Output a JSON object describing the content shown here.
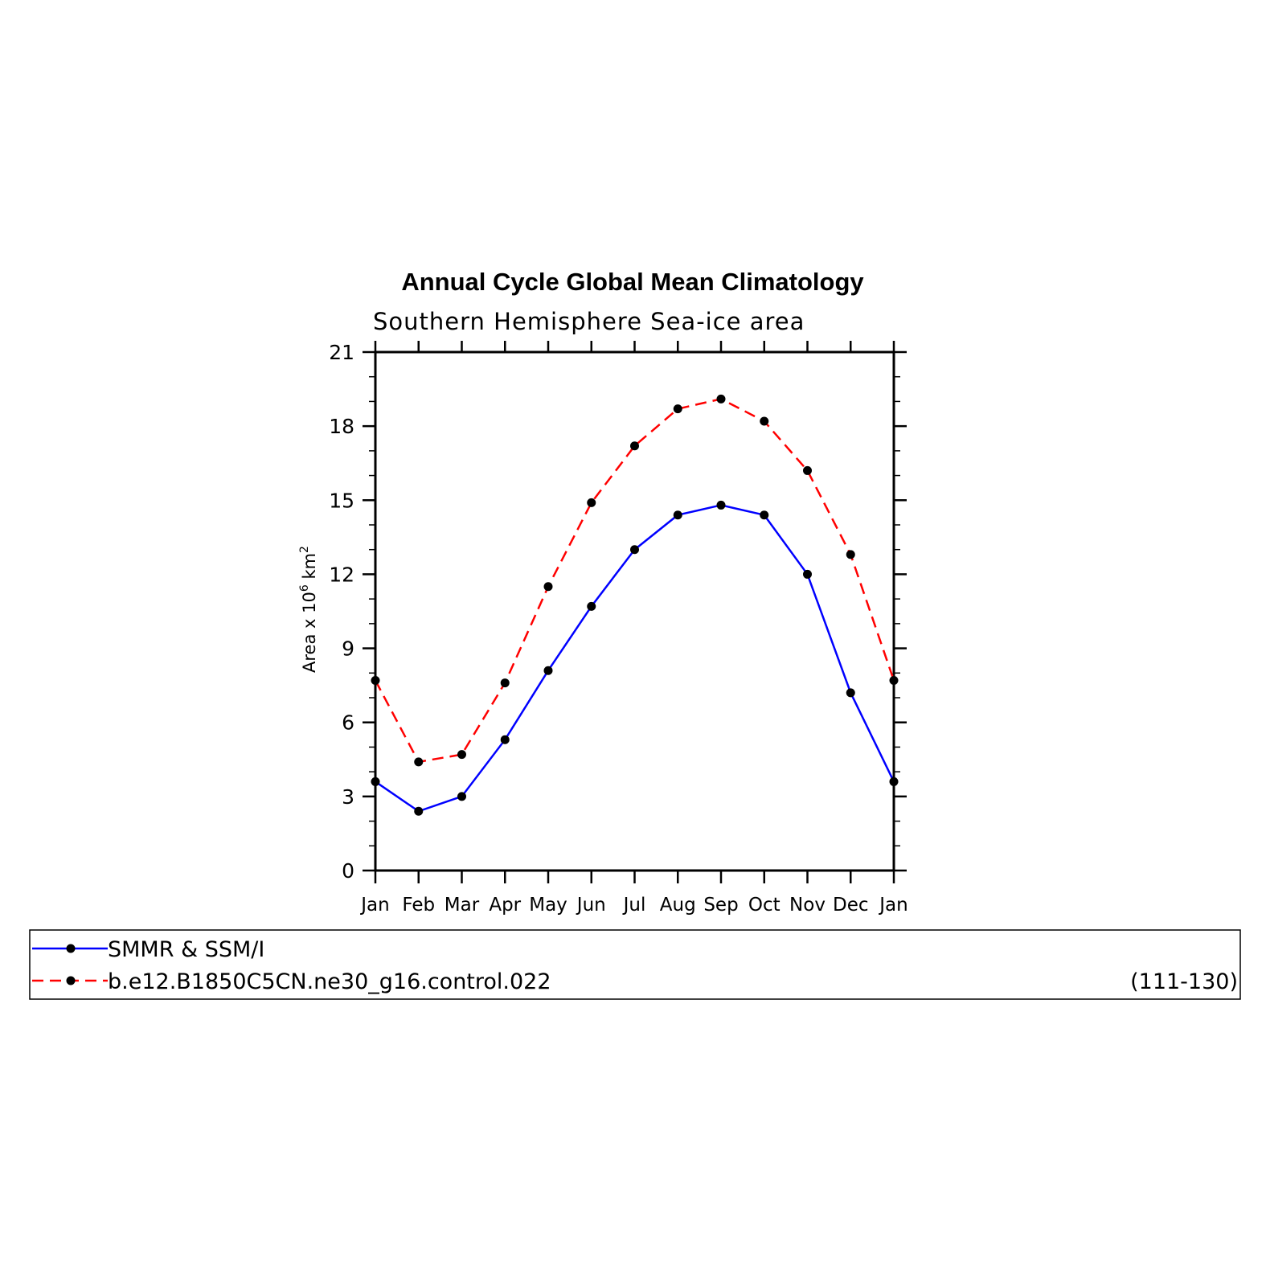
{
  "chart_data": {
    "type": "line",
    "title": "Annual Cycle Global Mean Climatology",
    "subtitle": "Southern Hemisphere Sea-ice area",
    "ylabel_main": "Area x 10",
    "ylabel_exp": "6",
    "ylabel_unit": " km",
    "ylabel_unit_exp": "2",
    "categories": [
      "Jan",
      "Feb",
      "Mar",
      "Apr",
      "May",
      "Jun",
      "Jul",
      "Aug",
      "Sep",
      "Oct",
      "Nov",
      "Dec",
      "Jan"
    ],
    "ylim": [
      0,
      21
    ],
    "yticks": [
      0,
      3,
      6,
      9,
      12,
      15,
      18,
      21
    ],
    "grid": false,
    "legend_placement": "bottom",
    "series": [
      {
        "name": "SMMR & SSM/I",
        "color": "#0000ff",
        "dash": "solid",
        "values": [
          3.6,
          2.4,
          3.0,
          5.3,
          8.1,
          10.7,
          13.0,
          14.4,
          14.8,
          14.4,
          12.0,
          7.2,
          3.6
        ]
      },
      {
        "name": "b.e12.B1850C5CN.ne30_g16.control.022",
        "color": "#ff0000",
        "dash": "dashed",
        "values": [
          7.7,
          4.4,
          4.7,
          7.6,
          11.5,
          14.9,
          17.2,
          18.7,
          19.1,
          18.2,
          16.2,
          12.8,
          7.7
        ]
      }
    ],
    "legend_note": "(111-130)"
  }
}
